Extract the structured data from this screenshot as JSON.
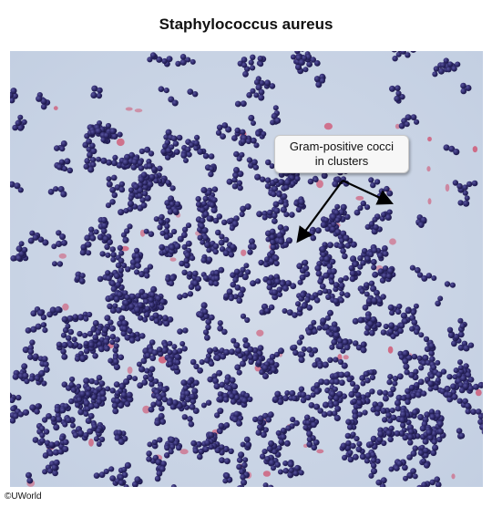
{
  "title": "Staphylococcus aureus",
  "callout": {
    "line1": "Gram-positive cocci",
    "line2": "in clusters"
  },
  "copyright": "©UWorld",
  "colors": {
    "background": "#c8d3e4",
    "cocci": "#2f2a6b",
    "pink_artifact": "#d0506e"
  }
}
